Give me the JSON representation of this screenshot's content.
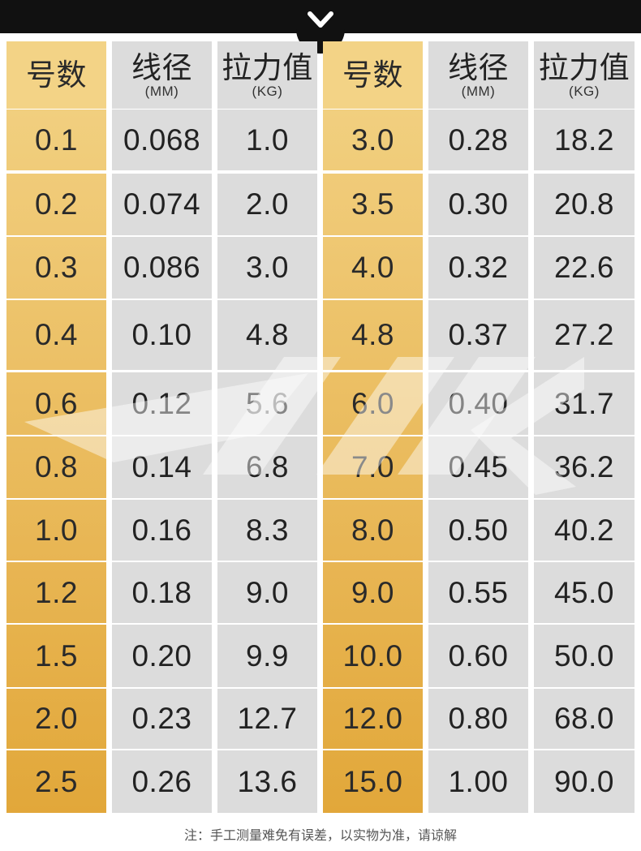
{
  "header": {
    "columns": [
      {
        "title": "号数",
        "unit": ""
      },
      {
        "title": "线径",
        "unit": "(MM)"
      },
      {
        "title": "拉力值",
        "unit": "(KG)"
      },
      {
        "title": "号数",
        "unit": ""
      },
      {
        "title": "线径",
        "unit": "(MM)"
      },
      {
        "title": "拉力值",
        "unit": "(KG)"
      }
    ]
  },
  "rows": [
    [
      "0.1",
      "0.068",
      "1.0",
      "3.0",
      "0.28",
      "18.2"
    ],
    [
      "0.2",
      "0.074",
      "2.0",
      "3.5",
      "0.30",
      "20.8"
    ],
    [
      "0.3",
      "0.086",
      "3.0",
      "4.0",
      "0.32",
      "22.6"
    ],
    [
      "0.4",
      "0.10",
      "4.8",
      "4.8",
      "0.37",
      "27.2"
    ],
    [
      "0.6",
      "0.12",
      "5.6",
      "6.0",
      "0.40",
      "31.7"
    ],
    [
      "0.8",
      "0.14",
      "6.8",
      "7.0",
      "0.45",
      "36.2"
    ],
    [
      "1.0",
      "0.16",
      "8.3",
      "8.0",
      "0.50",
      "40.2"
    ],
    [
      "1.2",
      "0.18",
      "9.0",
      "9.0",
      "0.55",
      "45.0"
    ],
    [
      "1.5",
      "0.20",
      "9.9",
      "10.0",
      "0.60",
      "50.0"
    ],
    [
      "2.0",
      "0.23",
      "12.7",
      "12.0",
      "0.80",
      "68.0"
    ],
    [
      "2.5",
      "0.26",
      "13.6",
      "15.0",
      "1.00",
      "90.0"
    ]
  ],
  "note": "注：手工测量难免有误差，以实物为准，请谅解",
  "colors": {
    "gold_top": "#f3d386",
    "gold_bottom": "#e2a73a",
    "grey": "#dcdcdc",
    "bar": "#111111"
  },
  "icons": {
    "top_tab": "chevron-down-icon"
  }
}
